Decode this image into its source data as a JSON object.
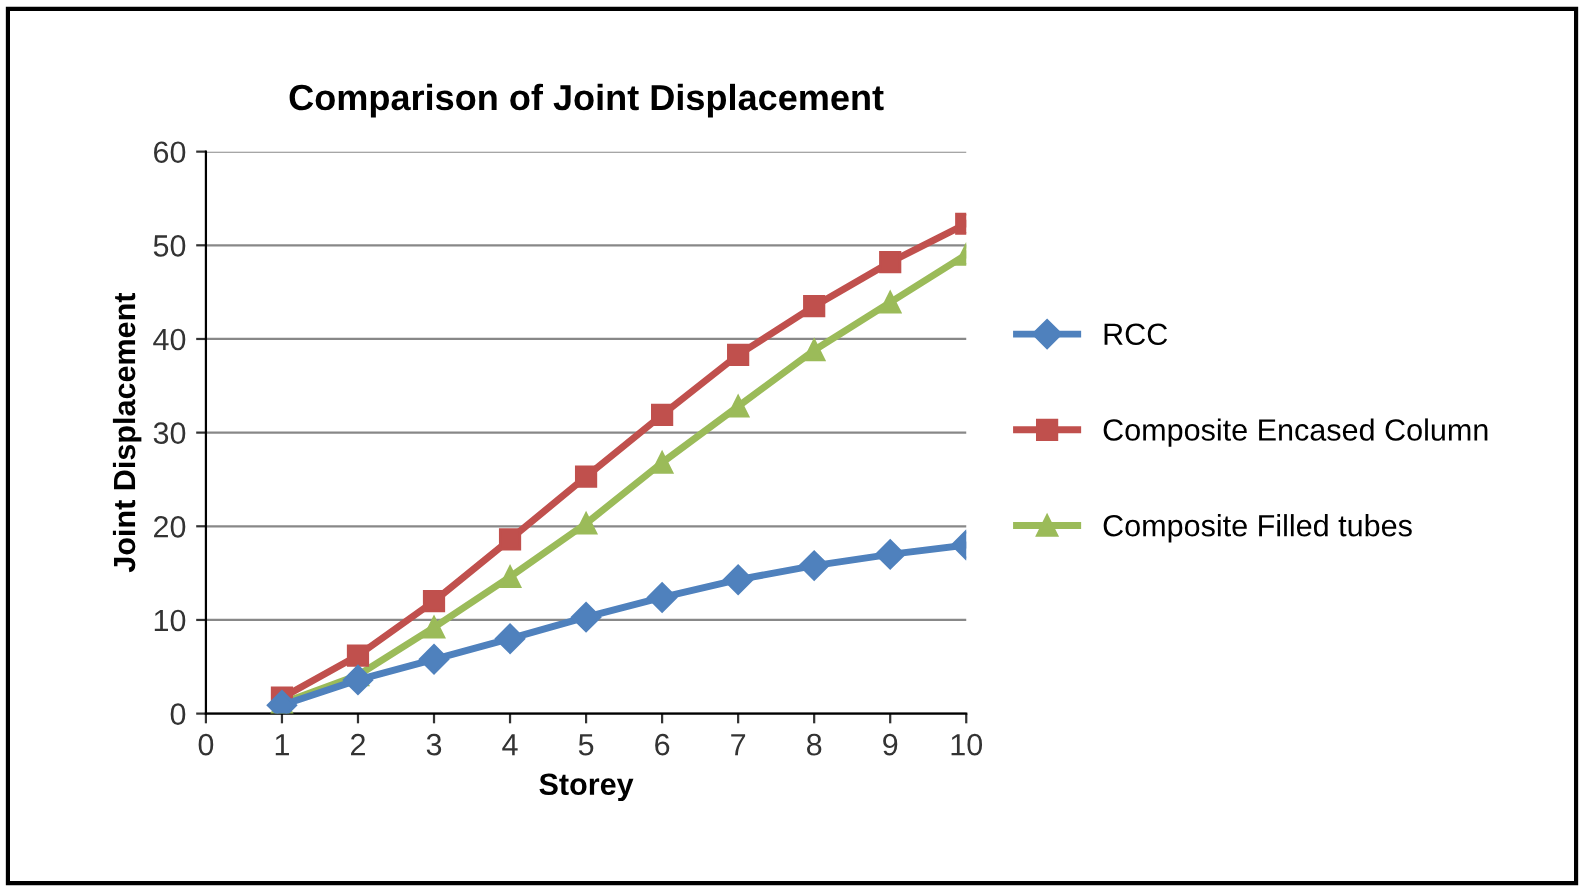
{
  "chart_data": {
    "type": "line",
    "title": "Comparison of Joint Displacement",
    "xlabel": "Storey",
    "ylabel": "Joint Displacement",
    "x": [
      1,
      2,
      3,
      4,
      5,
      6,
      7,
      8,
      9,
      10
    ],
    "series": [
      {
        "name": "RCC",
        "color": "#4f81bd",
        "marker": "diamond",
        "values": [
          0.9,
          3.6,
          5.8,
          8.0,
          10.3,
          12.4,
          14.3,
          15.8,
          17.0,
          18.0
        ]
      },
      {
        "name": "Composite Encased Column",
        "color": "#c0504d",
        "marker": "square",
        "values": [
          1.7,
          6.2,
          12.0,
          18.6,
          25.3,
          31.9,
          38.3,
          43.5,
          48.2,
          52.3
        ]
      },
      {
        "name": "Composite Filled tubes",
        "color": "#9bbb59",
        "marker": "triangle",
        "values": [
          1.1,
          4.1,
          9.2,
          14.6,
          20.3,
          26.8,
          32.8,
          38.8,
          43.9,
          49.0
        ]
      }
    ],
    "xlim": [
      0,
      10
    ],
    "xticks": [
      0,
      1,
      2,
      3,
      4,
      5,
      6,
      7,
      8,
      9,
      10
    ],
    "ylim": [
      0,
      60
    ],
    "yticks": [
      0,
      10,
      20,
      30,
      40,
      50,
      60
    ],
    "grid": "y",
    "legend": "right",
    "line_style": "solid"
  }
}
